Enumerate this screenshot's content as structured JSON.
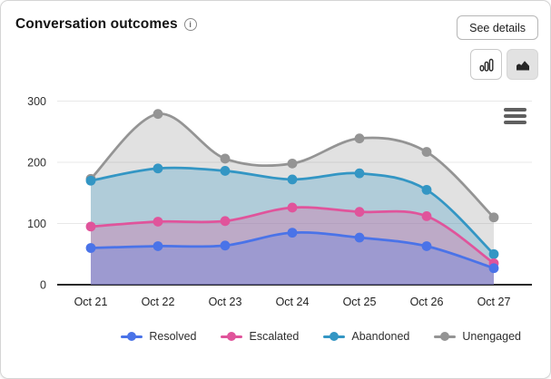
{
  "header": {
    "title": "Conversation outcomes",
    "see_details_label": "See details",
    "icons": {
      "info_glyph": "i"
    }
  },
  "toolbar": {
    "bar_toggle_icon": "bar-chart-icon",
    "area_toggle_icon": "area-chart-icon",
    "active_toggle": "area"
  },
  "chart_data": {
    "type": "area",
    "title": "Conversation outcomes",
    "categories": [
      "Oct 21",
      "Oct 22",
      "Oct 23",
      "Oct 24",
      "Oct 25",
      "Oct 26",
      "Oct 27"
    ],
    "series": [
      {
        "name": "Resolved",
        "color": "#4a73e8",
        "values": [
          60,
          63,
          64,
          85,
          77,
          63,
          27
        ]
      },
      {
        "name": "Escalated",
        "color": "#e0549b",
        "values": [
          95,
          103,
          104,
          126,
          119,
          112,
          35
        ]
      },
      {
        "name": "Abandoned",
        "color": "#3396c4",
        "values": [
          170,
          190,
          186,
          172,
          182,
          155,
          50
        ]
      },
      {
        "name": "Unengaged",
        "color": "#949494",
        "values": [
          173,
          279,
          206,
          198,
          239,
          217,
          110
        ]
      }
    ],
    "yticks": [
      0,
      100,
      200,
      300
    ],
    "ylim": [
      0,
      300
    ],
    "grid": true,
    "smooth": true,
    "legend_position": "bottom",
    "axis_color": "#2a2a2a",
    "grid_color": "#e8e8e8",
    "tick_label_color": "#2f2f2f"
  }
}
